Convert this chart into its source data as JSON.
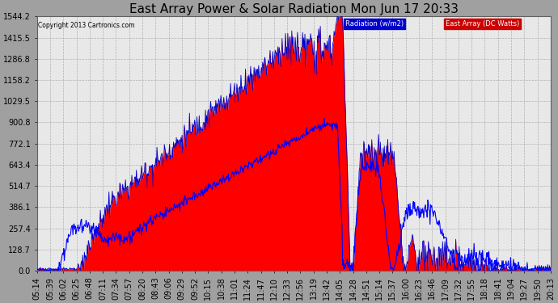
{
  "title": "East Array Power & Solar Radiation Mon Jun 17 20:33",
  "copyright": "Copyright 2013 Cartronics.com",
  "legend_radiation": "Radiation (w/m2)",
  "legend_east": "East Array (DC Watts)",
  "radiation_fill_color": "#ff0000",
  "radiation_line_color": "#0000cc",
  "east_line_color": "#0000ff",
  "background_color": "#c8c8c8",
  "plot_background": "#d8d8d8",
  "grid_color": "#aaaaaa",
  "ylim_min": 0.0,
  "ylim_max": 1544.2,
  "yticks": [
    0.0,
    128.7,
    257.4,
    386.1,
    514.7,
    643.4,
    772.1,
    900.8,
    1029.5,
    1158.2,
    1286.8,
    1415.5,
    1544.2
  ],
  "title_fontsize": 11,
  "tick_fontsize": 7,
  "time_labels": [
    "05:14",
    "05:39",
    "06:02",
    "06:25",
    "06:48",
    "07:11",
    "07:34",
    "07:57",
    "08:20",
    "08:43",
    "09:06",
    "09:29",
    "09:52",
    "10:15",
    "10:38",
    "11:01",
    "11:24",
    "11:47",
    "12:10",
    "12:33",
    "12:56",
    "13:19",
    "13:42",
    "14:05",
    "14:28",
    "14:51",
    "15:14",
    "15:37",
    "16:00",
    "16:23",
    "16:46",
    "17:09",
    "17:32",
    "17:55",
    "18:18",
    "18:41",
    "19:04",
    "19:27",
    "19:50",
    "20:13"
  ]
}
